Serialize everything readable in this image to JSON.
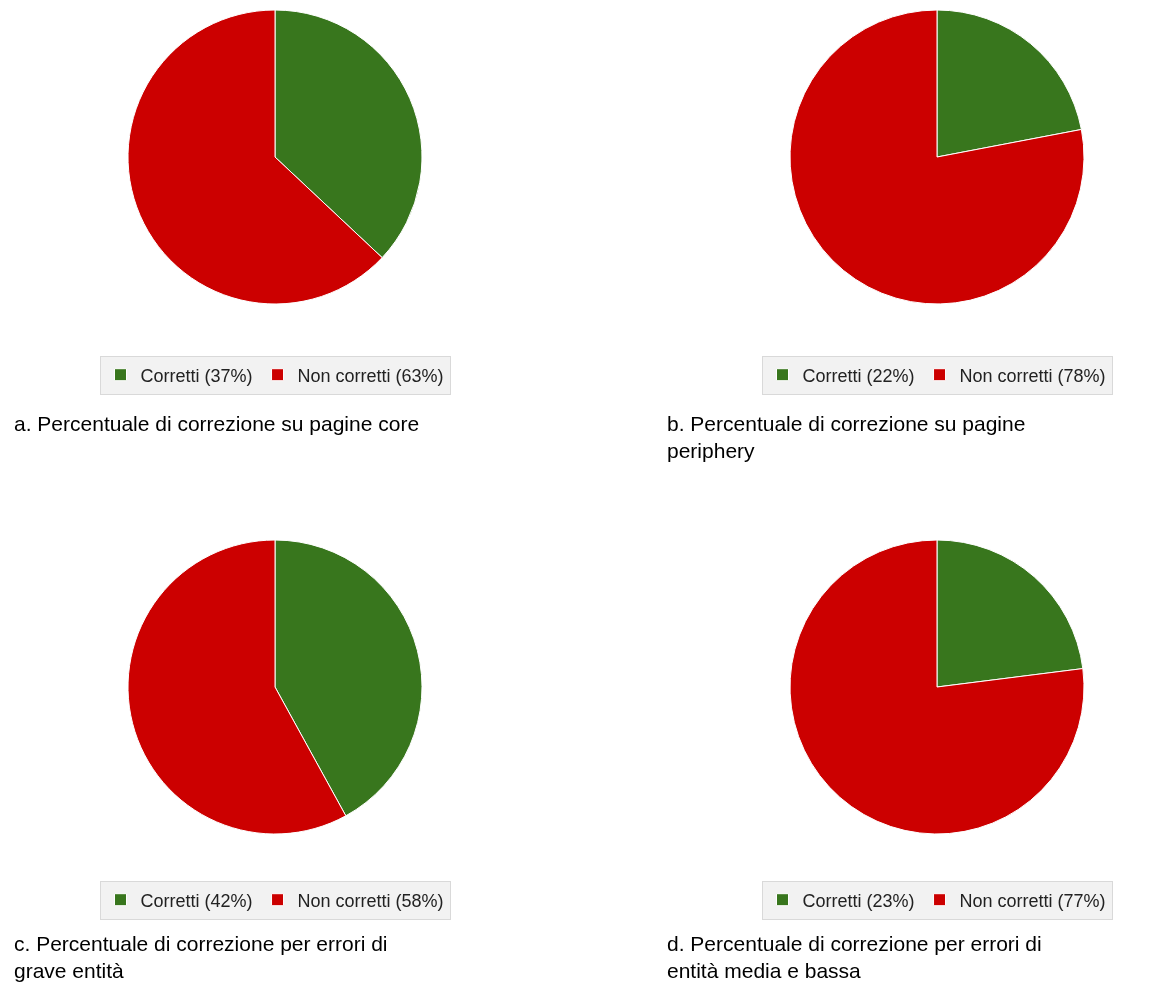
{
  "chart_data": [
    {
      "type": "pie",
      "title": "a. Percentuale di correzione su pagine core",
      "categories": [
        "Corretti (37%)",
        "Non corretti (63%)"
      ],
      "values": [
        37,
        63
      ],
      "colors": [
        "#38761d",
        "#cc0000"
      ],
      "legend": "bottom"
    },
    {
      "type": "pie",
      "title": "b. Percentuale di correzione su pagine periphery",
      "categories": [
        "Corretti (22%)",
        "Non corretti (78%)"
      ],
      "values": [
        22,
        78
      ],
      "colors": [
        "#38761d",
        "#cc0000"
      ],
      "legend": "bottom"
    },
    {
      "type": "pie",
      "title": "c. Percentuale di correzione per errori di grave entità",
      "categories": [
        "Corretti (42%)",
        "Non corretti (58%)"
      ],
      "values": [
        42,
        58
      ],
      "colors": [
        "#38761d",
        "#cc0000"
      ],
      "legend": "bottom"
    },
    {
      "type": "pie",
      "title": "d. Percentuale di correzione per errori di entità media e bassa",
      "categories": [
        "Corretti (23%)",
        "Non corretti (77%)"
      ],
      "values": [
        23,
        77
      ],
      "colors": [
        "#38761d",
        "#cc0000"
      ],
      "legend": "bottom"
    }
  ]
}
